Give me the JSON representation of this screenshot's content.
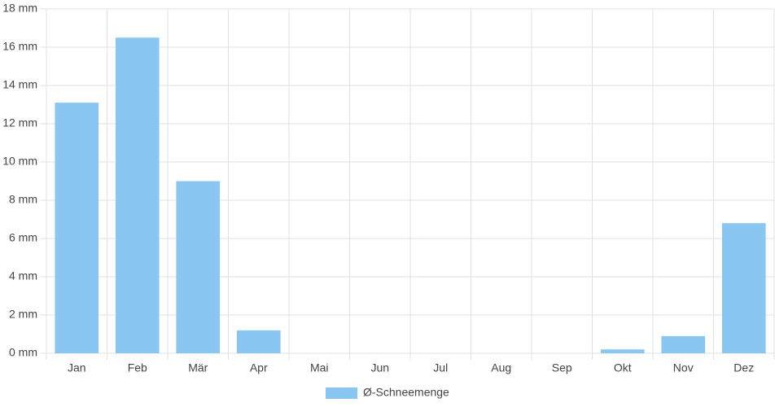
{
  "chart_data": {
    "type": "bar",
    "categories": [
      "Jan",
      "Feb",
      "Mär",
      "Apr",
      "Mai",
      "Jun",
      "Jul",
      "Aug",
      "Sep",
      "Okt",
      "Nov",
      "Dez"
    ],
    "series": [
      {
        "name": "Ø-Schneemenge",
        "color": "#89c6f2",
        "values": [
          13.1,
          16.5,
          9.0,
          1.2,
          0,
          0,
          0,
          0,
          0,
          0.2,
          0.9,
          6.8
        ]
      }
    ],
    "ylim": [
      0,
      18
    ],
    "yticks": [
      {
        "value": 0,
        "label": "0 mm"
      },
      {
        "value": 2,
        "label": "2 mm"
      },
      {
        "value": 4,
        "label": "4 mm"
      },
      {
        "value": 6,
        "label": "6 mm"
      },
      {
        "value": 8,
        "label": "8 mm"
      },
      {
        "value": 10,
        "label": "10 mm"
      },
      {
        "value": 12,
        "label": "12 mm"
      },
      {
        "value": 14,
        "label": "14 mm"
      },
      {
        "value": 16,
        "label": "16 mm"
      },
      {
        "value": 18,
        "label": "18 mm"
      }
    ],
    "grid": true,
    "legend": "bottom"
  }
}
